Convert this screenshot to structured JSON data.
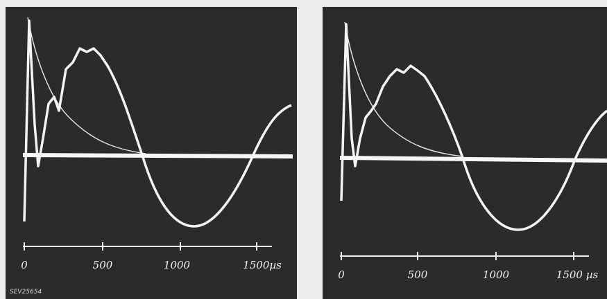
{
  "panels": [
    {
      "ticks": [
        "0",
        "500",
        "1000",
        "1500µs"
      ],
      "code": "SEV25654"
    },
    {
      "ticks": [
        "0",
        "500",
        "1000",
        "1500 µs"
      ]
    }
  ]
}
